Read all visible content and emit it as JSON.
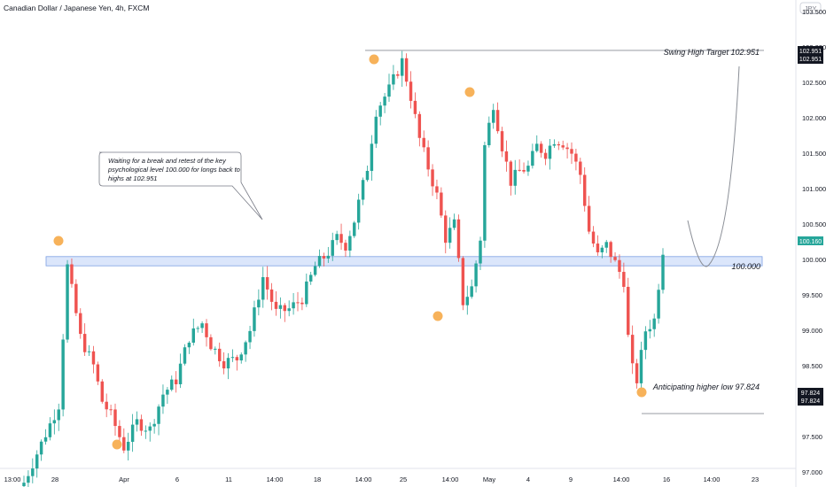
{
  "header": {
    "title": "Canadian Dollar / Japanese Yen, 4h, FXCM"
  },
  "currency_badge": "JPY",
  "chart_data": {
    "type": "candlestick",
    "title": "Canadian Dollar / Japanese Yen, 4h, FXCM",
    "ylim": [
      96.7,
      103.8
    ],
    "y_ticks": [
      "103.500",
      "103.000",
      "102.500",
      "102.000",
      "101.500",
      "101.000",
      "100.500",
      "100.000",
      "99.500",
      "99.000",
      "98.500",
      "98.000",
      "97.500",
      "97.000"
    ],
    "x_ticks": [
      "13:00",
      "28",
      "Apr",
      "6",
      "11",
      "14:00",
      "18",
      "14:00",
      "25",
      "14:00",
      "May",
      "4",
      "9",
      "14:00",
      "16",
      "14:00",
      "23"
    ],
    "colors": {
      "up": "#26a69a",
      "down": "#ef5350",
      "marker": "#f7b25a",
      "zone_fill": "#dbe6fb",
      "zone_edge": "#7d9fe3",
      "line": "#8a8e96"
    },
    "levels": {
      "swing_high": 102.951,
      "higher_low": 97.824,
      "psych_level": 100.0,
      "zone": [
        99.91,
        100.04
      ],
      "last_price": 100.16
    },
    "price_labels": {
      "swing_high_1": "102.951",
      "swing_high_2": "102.951",
      "higher_low_1": "97.824",
      "higher_low_2": "97.824",
      "last": "100.160"
    },
    "annotations": {
      "callout": "Waiting for a break and retest of the key psychological level 100.000 for longs back to highs at 102.951",
      "swing_high": "Swing High Target 102.951",
      "level": "100.000",
      "higher_low": "Anticipating higher low 97.824"
    },
    "pivots": [
      {
        "x": 0.04,
        "y": 100.35
      },
      {
        "x": 0.14,
        "y": 96.95
      },
      {
        "x": 0.52,
        "y": 102.95
      },
      {
        "x": 0.56,
        "y": 98.95
      },
      {
        "x": 0.67,
        "y": 102.45
      },
      {
        "x": 0.92,
        "y": 97.7
      }
    ],
    "close_path": [
      [
        0,
        96.85
      ],
      [
        4,
        97.4
      ],
      [
        8,
        97.95
      ],
      [
        10,
        99.9
      ],
      [
        13,
        98.9
      ],
      [
        16,
        98.5
      ],
      [
        18,
        98.0
      ],
      [
        20,
        97.8
      ],
      [
        23,
        97.35
      ],
      [
        26,
        97.7
      ],
      [
        29,
        97.6
      ],
      [
        32,
        98.1
      ],
      [
        35,
        98.3
      ],
      [
        38,
        98.9
      ],
      [
        41,
        99.1
      ],
      [
        43,
        98.8
      ],
      [
        46,
        98.55
      ],
      [
        49,
        98.6
      ],
      [
        52,
        99.0
      ],
      [
        55,
        99.75
      ],
      [
        58,
        99.25
      ],
      [
        61,
        99.3
      ],
      [
        64,
        99.45
      ],
      [
        67,
        99.9
      ],
      [
        70,
        100.1
      ],
      [
        72,
        100.3
      ],
      [
        74,
        100.2
      ],
      [
        76,
        100.55
      ],
      [
        79,
        101.3
      ],
      [
        81,
        102.1
      ],
      [
        84,
        102.4
      ],
      [
        87,
        102.8
      ],
      [
        89,
        102.3
      ],
      [
        91,
        101.7
      ],
      [
        93,
        101.3
      ],
      [
        95,
        100.9
      ],
      [
        97,
        100.3
      ],
      [
        99,
        100.5
      ],
      [
        101,
        99.4
      ],
      [
        103,
        99.6
      ],
      [
        105,
        100.3
      ],
      [
        106,
        101.6
      ],
      [
        108,
        102.2
      ],
      [
        110,
        101.6
      ],
      [
        112,
        101.1
      ],
      [
        114,
        101.25
      ],
      [
        116,
        101.3
      ],
      [
        118,
        101.6
      ],
      [
        120,
        101.5
      ],
      [
        122,
        101.7
      ],
      [
        124,
        101.65
      ],
      [
        126,
        101.5
      ],
      [
        128,
        101.2
      ],
      [
        130,
        100.4
      ],
      [
        132,
        100.05
      ],
      [
        134,
        100.2
      ],
      [
        136,
        99.95
      ],
      [
        138,
        99.7
      ],
      [
        139,
        98.9
      ],
      [
        140,
        98.45
      ],
      [
        141,
        98.3
      ],
      [
        143,
        99.0
      ],
      [
        145,
        99.15
      ],
      [
        147,
        100.14
      ]
    ]
  }
}
